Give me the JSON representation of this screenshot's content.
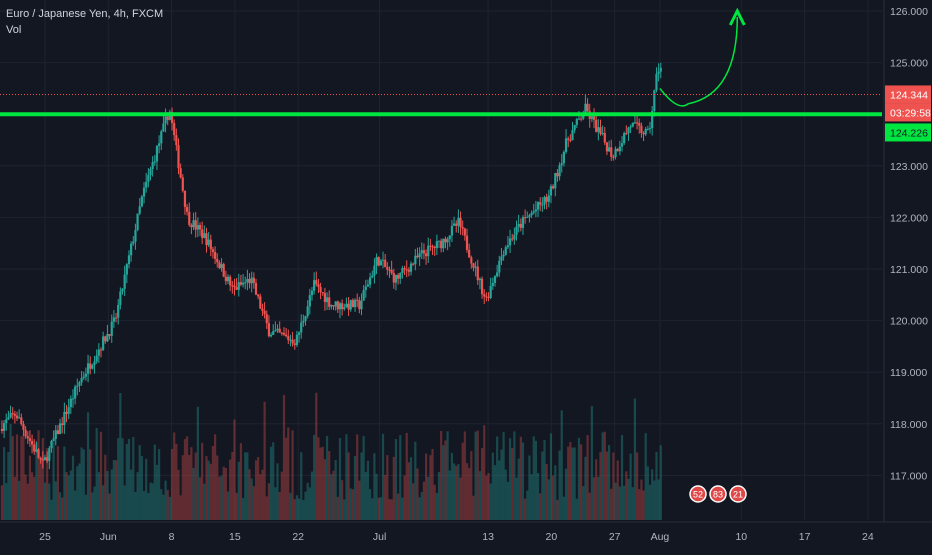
{
  "legend": {
    "symbol": "Euro / Japanese Yen, 4h, FXCM",
    "volume": "Vol"
  },
  "colors": {
    "background": "#131722",
    "grid": "#1f2330",
    "up": "#26a69a",
    "down": "#ef5350",
    "support_line": "#00e640",
    "price_line": "#ef5350",
    "axis_text": "#b2b5be"
  },
  "chart_data": {
    "type": "candlestick",
    "title": "Euro / Japanese Yen, 4h, FXCM",
    "ylim": [
      116.2,
      126.2
    ],
    "y_ticks": [
      "126.000",
      "125.000",
      "124.000",
      "123.000",
      "122.000",
      "121.000",
      "120.000",
      "119.000",
      "118.000",
      "117.000"
    ],
    "x_ticks": [
      "25",
      "Jun",
      "8",
      "15",
      "22",
      "Jul",
      "13",
      "20",
      "27",
      "Aug",
      "10",
      "17",
      "24"
    ],
    "grid": true,
    "price_path": {
      "date_anchors": [
        "May 20",
        "May 22",
        "May 25",
        "May 29",
        "Jun 2",
        "Jun 5",
        "Jun 8",
        "Jun 10",
        "Jun 12",
        "Jun 15",
        "Jun 17",
        "Jun 19",
        "Jun 22",
        "Jun 24",
        "Jun 26",
        "Jun 29",
        "Jul 1",
        "Jul 3",
        "Jul 6",
        "Jul 8",
        "Jul 10",
        "Jul 13",
        "Jul 15",
        "Jul 17",
        "Jul 20",
        "Jul 22",
        "Jul 24",
        "Jul 27",
        "Jul 29",
        "Jul 31",
        "Aug 1"
      ],
      "close_anchors": [
        117.9,
        118.2,
        117.2,
        118.8,
        120.0,
        122.4,
        124.1,
        122.0,
        121.6,
        120.6,
        120.8,
        119.8,
        119.6,
        120.7,
        120.3,
        120.3,
        121.2,
        120.8,
        121.3,
        121.5,
        121.9,
        120.4,
        121.4,
        121.9,
        122.4,
        123.5,
        124.1,
        123.2,
        123.8,
        123.6,
        124.9
      ]
    },
    "volume": {
      "description_free": true
    },
    "support_level": 124.0,
    "last_price_label": "124.344",
    "countdown_label": "03:29:58",
    "support_label": "124.226",
    "projection": {
      "from": [
        "Aug 1",
        124.5
      ],
      "dip": [
        "Aug 3",
        124.2
      ],
      "to": [
        "Aug 10",
        126.0
      ]
    },
    "event_markers": [
      "52",
      "83",
      "21"
    ]
  }
}
